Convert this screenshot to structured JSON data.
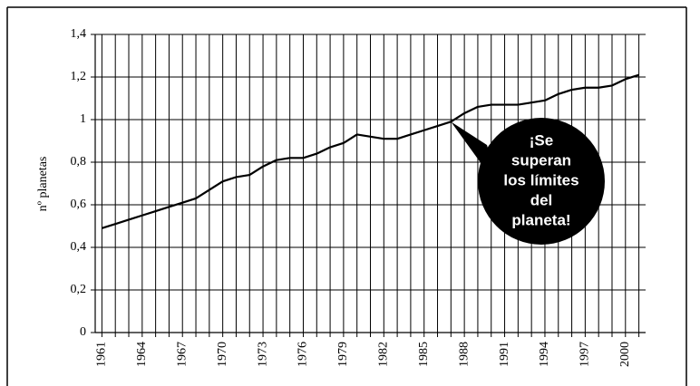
{
  "chart_data": {
    "type": "line",
    "y_label": "nº planetas",
    "x": [
      1961,
      1962,
      1963,
      1964,
      1965,
      1966,
      1967,
      1968,
      1969,
      1970,
      1971,
      1972,
      1973,
      1974,
      1975,
      1976,
      1977,
      1978,
      1979,
      1980,
      1981,
      1982,
      1983,
      1984,
      1985,
      1986,
      1987,
      1988,
      1989,
      1990,
      1991,
      1992,
      1993,
      1994,
      1995,
      1996,
      1997,
      1998,
      1999,
      2000,
      2001
    ],
    "series": [
      {
        "color": "#000000",
        "values": [
          0.49,
          0.51,
          0.53,
          0.55,
          0.57,
          0.59,
          0.61,
          0.63,
          0.67,
          0.71,
          0.73,
          0.74,
          0.78,
          0.81,
          0.82,
          0.82,
          0.84,
          0.87,
          0.89,
          0.93,
          0.92,
          0.91,
          0.91,
          0.93,
          0.95,
          0.97,
          0.99,
          1.03,
          1.06,
          1.07,
          1.07,
          1.07,
          1.08,
          1.09,
          1.12,
          1.14,
          1.15,
          1.15,
          1.16,
          1.19,
          1.21
        ]
      }
    ],
    "xlim": [
      1960.5,
      2001.5
    ],
    "xticks": [
      1961,
      1964,
      1967,
      1970,
      1973,
      1976,
      1979,
      1982,
      1985,
      1988,
      1991,
      1994,
      1997,
      2000
    ],
    "ylim": [
      0,
      1.4
    ],
    "yticks": [
      0,
      {
        "value": 0.2,
        "label": "0,2"
      },
      {
        "value": 0.4,
        "label": "0,4"
      },
      {
        "value": 0.6,
        "label": "0,6"
      },
      {
        "value": 0.8,
        "label": "0,8"
      },
      1,
      {
        "value": 1.2,
        "label": "1,2"
      },
      {
        "value": 1.4,
        "label": "1,4"
      }
    ],
    "grid": true,
    "annotation": {
      "x": 1987,
      "y": 0.99,
      "lines": [
        "¡Se",
        "superan",
        "los límites",
        "del",
        "planeta!"
      ]
    }
  }
}
